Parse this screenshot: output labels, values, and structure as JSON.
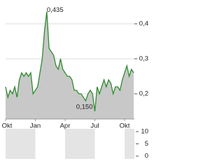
{
  "chart_data": {
    "type": "line",
    "categories": [
      "Okt",
      null,
      null,
      null,
      null,
      null,
      null,
      null,
      null,
      null,
      null,
      null,
      null,
      "Jan",
      null,
      null,
      null,
      null,
      null,
      null,
      null,
      null,
      null,
      null,
      null,
      null,
      "Apr",
      null,
      null,
      null,
      null,
      null,
      null,
      null,
      null,
      null,
      null,
      null,
      null,
      "Jul",
      null,
      null,
      null,
      null,
      null,
      null,
      null,
      null,
      null,
      null,
      null,
      null,
      "Okt",
      null,
      null,
      null,
      null
    ],
    "values": [
      0.22,
      0.19,
      0.21,
      0.2,
      0.22,
      0.19,
      0.24,
      0.26,
      0.25,
      0.26,
      0.25,
      0.26,
      0.2,
      0.21,
      0.22,
      0.26,
      0.3,
      0.38,
      0.435,
      0.33,
      0.32,
      0.31,
      0.28,
      0.27,
      0.3,
      0.27,
      0.26,
      0.25,
      0.25,
      0.24,
      0.21,
      0.21,
      0.2,
      0.2,
      0.19,
      0.18,
      0.2,
      0.21,
      0.2,
      0.15,
      0.22,
      0.2,
      0.22,
      0.24,
      0.22,
      0.24,
      0.23,
      0.2,
      0.22,
      0.22,
      0.21,
      0.24,
      0.26,
      0.28,
      0.25,
      0.27,
      0.26
    ],
    "color": "#2e8b2e",
    "fill": "#c8c8c8",
    "ylim": [
      0.128,
      0.448
    ],
    "yticks": [
      {
        "value": 0.2,
        "label": "0,2"
      },
      {
        "value": 0.3,
        "label": "0,3"
      },
      {
        "value": 0.4,
        "label": "0,4"
      }
    ],
    "grid": true,
    "annotations": [
      {
        "label": "0,435",
        "value": 0.435
      },
      {
        "label": "0,150",
        "value": 0.15
      }
    ],
    "volume": {
      "ylim": [
        0,
        10
      ],
      "yticks": [
        0,
        5,
        10
      ]
    }
  }
}
